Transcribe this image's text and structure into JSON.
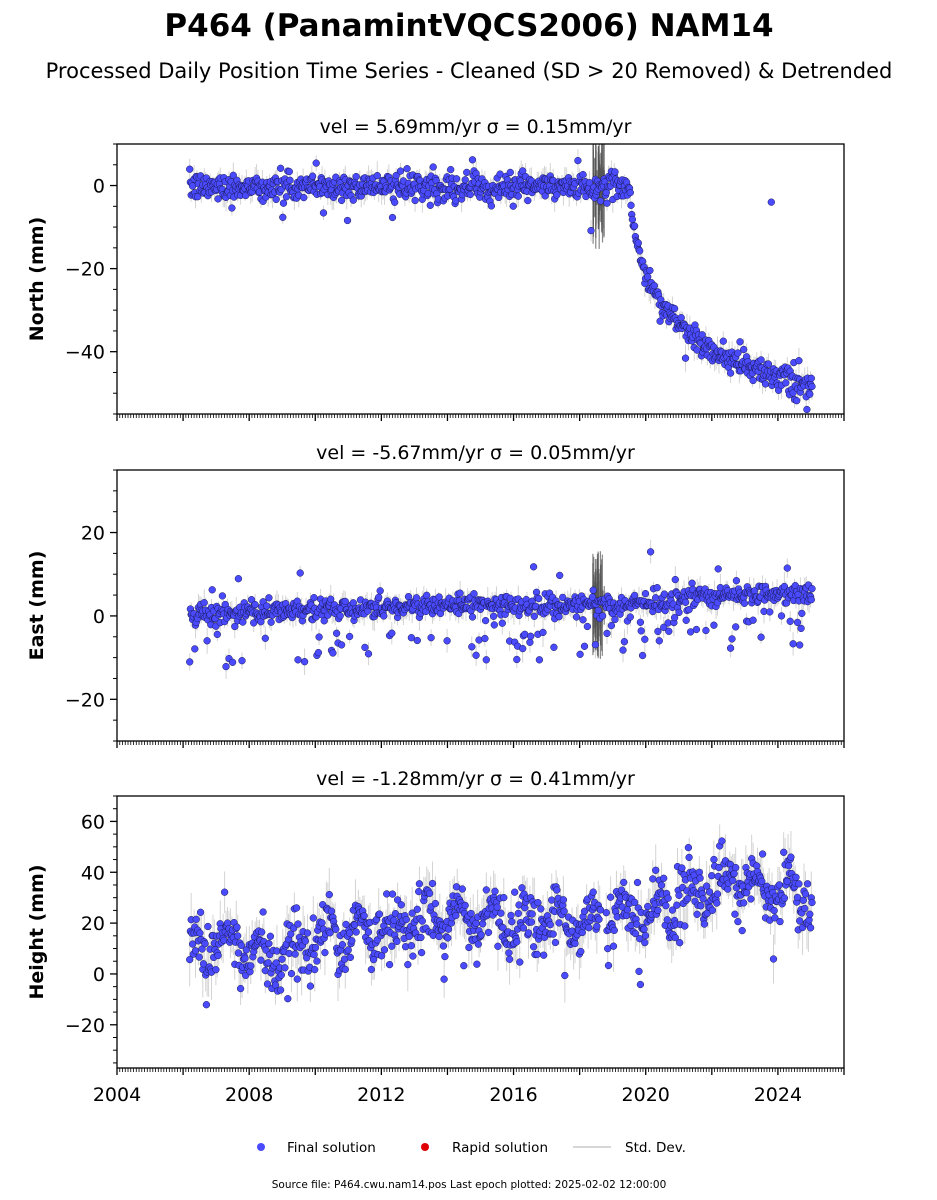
{
  "title": "P464 (PanamintVQCS2006) NAM14",
  "subtitle": "Processed Daily Position Time Series - Cleaned (SD > 20 Removed) & Detrended",
  "colors": {
    "final": "#4a4aff",
    "rapid": "#e00000",
    "std": "#b0b0b0",
    "std_dark": "#555555"
  },
  "legend": {
    "placement": "bottom-center",
    "final": "Final solution",
    "rapid": "Rapid solution",
    "std": "Std. Dev."
  },
  "footer": "Source file: P464.cwu.nam14.pos  Last epoch plotted: 2025-02-02 12:00:00",
  "chart_data": [
    {
      "type": "scatter",
      "panel_title": "vel = 5.69mm/yr   σ = 0.15mm/yr",
      "ylabel": "North (mm)",
      "xlim": [
        2004,
        2026
      ],
      "ylim": [
        -55,
        10
      ],
      "yticks": [
        0,
        -20,
        -40
      ],
      "x_ticklabels": [],
      "grid": false,
      "series": [
        {
          "name": "Final solution",
          "description": "Daily positions ~0 mm 2006-2019.5, post-seismic drop to ~-25 mm by 2020.2, then decay to ~-49 mm by 2025",
          "x": [
            2006.2,
            2007,
            2008,
            2009,
            2010,
            2011,
            2012,
            2013,
            2014,
            2015,
            2016,
            2017,
            2018,
            2018.6,
            2019,
            2019.5,
            2019.6,
            2019.8,
            2020.0,
            2020.2,
            2020.5,
            2021,
            2021.5,
            2022,
            2022.5,
            2023,
            2023.5,
            2024,
            2024.5,
            2025.0
          ],
          "y": [
            -0.5,
            -0.3,
            -0.2,
            -0.5,
            -0.4,
            -0.3,
            -0.2,
            -0.5,
            -0.4,
            -0.3,
            -0.2,
            -0.3,
            -0.4,
            -0.5,
            0,
            0.2,
            -8,
            -16,
            -22,
            -25,
            -29,
            -33,
            -37,
            -40,
            -42,
            -43,
            -45,
            -46,
            -47.5,
            -49
          ]
        }
      ],
      "outliers": [
        {
          "x": 2023.8,
          "y": -4
        }
      ]
    },
    {
      "type": "scatter",
      "panel_title": "vel = -5.67mm/yr   σ = 0.05mm/yr",
      "ylabel": "East (mm)",
      "xlim": [
        2004,
        2026
      ],
      "ylim": [
        -30,
        35
      ],
      "yticks": [
        20,
        0,
        -20
      ],
      "x_ticklabels": [],
      "grid": false,
      "series": [
        {
          "name": "Final solution",
          "description": "Daily positions slowly rising from ~0 mm to ~6 mm with scattered negative outliers",
          "x": [
            2006.2,
            2008,
            2010,
            2012,
            2014,
            2016,
            2018,
            2018.8,
            2020,
            2021,
            2022,
            2023,
            2024,
            2025.0
          ],
          "y": [
            0.5,
            1.0,
            1.5,
            2.0,
            2.5,
            2.5,
            3.0,
            2.5,
            3.0,
            4.0,
            5.0,
            5.0,
            5.5,
            5.5
          ]
        }
      ]
    },
    {
      "type": "scatter",
      "panel_title": "vel = -1.28mm/yr   σ = 0.41mm/yr",
      "ylabel": "Height (mm)",
      "xlim": [
        2004,
        2026
      ],
      "ylim": [
        -37,
        70
      ],
      "yticks": [
        60,
        40,
        20,
        0,
        -20
      ],
      "x_ticklabels": [
        "2004",
        "2008",
        "2012",
        "2016",
        "2020",
        "2024"
      ],
      "grid": false,
      "series": [
        {
          "name": "Final solution",
          "description": "Seasonal daily heights rising from ~10 mm in 2006 to ~35 mm in 2023",
          "x": [
            2006.2,
            2007,
            2008,
            2009,
            2010,
            2011,
            2012,
            2013,
            2014,
            2015,
            2016,
            2017,
            2018,
            2018.8,
            2019.5,
            2020,
            2021,
            2022,
            2022.8,
            2023.5,
            2024,
            2025.0
          ],
          "y": [
            10,
            12,
            10,
            8,
            12,
            16,
            18,
            20,
            21,
            22,
            20,
            22,
            20,
            24,
            22,
            24,
            30,
            34,
            38,
            32,
            34,
            32
          ]
        }
      ]
    }
  ]
}
